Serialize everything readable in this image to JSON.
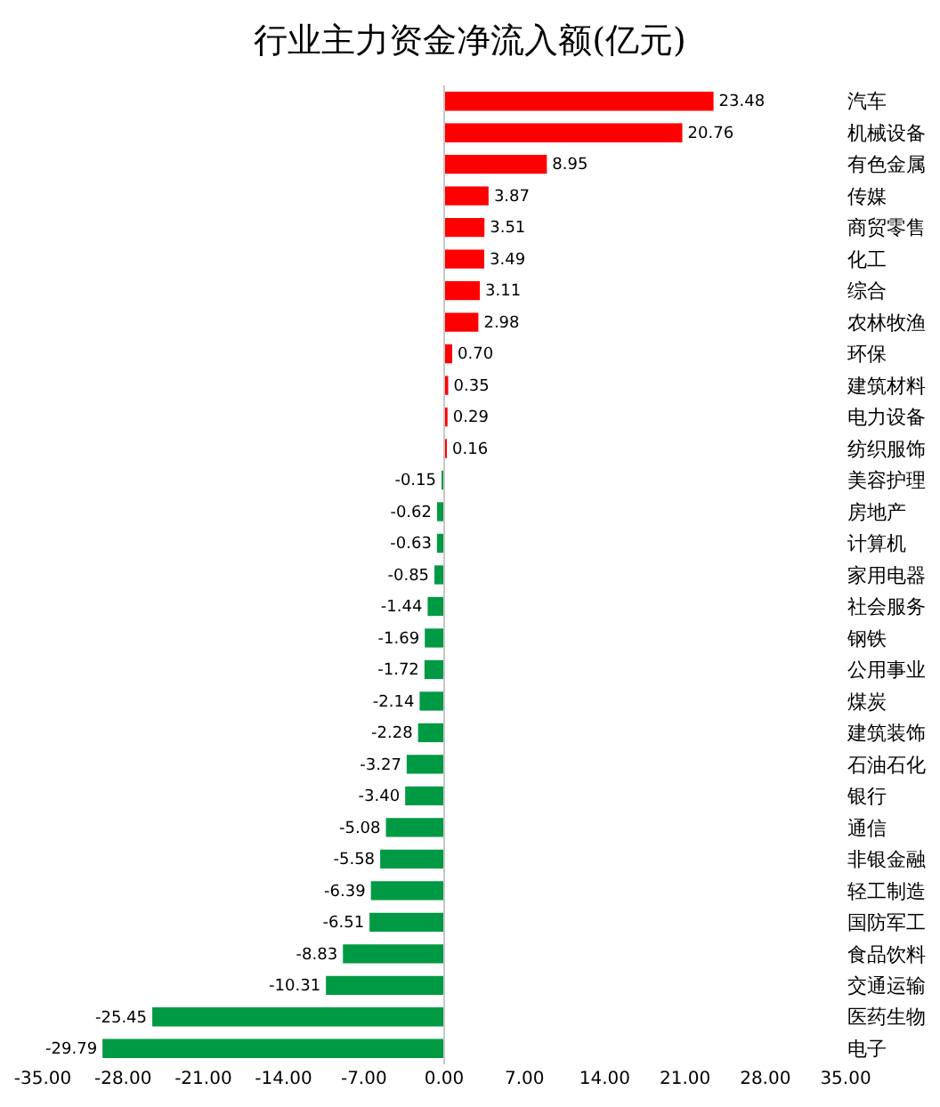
{
  "chart_data": {
    "type": "bar",
    "orientation": "horizontal",
    "title": "行业主力资金净流入额(亿元)",
    "categories": [
      "汽车",
      "机械设备",
      "有色金属",
      "传媒",
      "商贸零售",
      "化工",
      "综合",
      "农林牧渔",
      "环保",
      "建筑材料",
      "电力设备",
      "纺织服饰",
      "美容护理",
      "房地产",
      "计算机",
      "家用电器",
      "社会服务",
      "钢铁",
      "公用事业",
      "煤炭",
      "建筑装饰",
      "石油石化",
      "银行",
      "通信",
      "非银金融",
      "轻工制造",
      "国防军工",
      "食品饮料",
      "交通运输",
      "医药生物",
      "电子"
    ],
    "values": [
      23.48,
      20.76,
      8.95,
      3.87,
      3.51,
      3.49,
      3.11,
      2.98,
      0.7,
      0.35,
      0.29,
      0.16,
      -0.15,
      -0.62,
      -0.63,
      -0.85,
      -1.44,
      -1.69,
      -1.72,
      -2.14,
      -2.28,
      -3.27,
      -3.4,
      -5.08,
      -5.58,
      -6.39,
      -6.51,
      -8.83,
      -10.31,
      -25.45,
      -29.79
    ],
    "value_labels": [
      "23.48",
      "20.76",
      "8.95",
      "3.87",
      "3.51",
      "3.49",
      "3.11",
      "2.98",
      "0.70",
      "0.35",
      "0.29",
      "0.16",
      "-0.15",
      "-0.62",
      "-0.63",
      "-0.85",
      "-1.44",
      "-1.69",
      "-1.72",
      "-2.14",
      "-2.28",
      "-3.27",
      "-3.40",
      "-5.08",
      "-5.58",
      "-6.39",
      "-6.51",
      "-8.83",
      "-10.31",
      "-25.45",
      "-29.79"
    ],
    "colors": [
      "#ff0000",
      "#ff0000",
      "#ff0000",
      "#ff0000",
      "#ff0000",
      "#ff0000",
      "#ff0000",
      "#ff0000",
      "#ff0000",
      "#ff0000",
      "#ff0000",
      "#ff0000",
      "#009a44",
      "#009a44",
      "#009a44",
      "#009a44",
      "#009a44",
      "#009a44",
      "#009a44",
      "#009a44",
      "#009a44",
      "#009a44",
      "#009a44",
      "#009a44",
      "#009a44",
      "#009a44",
      "#009a44",
      "#009a44",
      "#009a44",
      "#009a44",
      "#009a44"
    ],
    "xlim": [
      -35,
      35
    ],
    "xticks": [
      {
        "value": -35,
        "label": "-35.00"
      },
      {
        "value": -28,
        "label": "-28.00"
      },
      {
        "value": -21,
        "label": "-21.00"
      },
      {
        "value": -14,
        "label": "-14.00"
      },
      {
        "value": -7,
        "label": "-7.00"
      },
      {
        "value": 0,
        "label": "0.00"
      },
      {
        "value": 7,
        "label": "7.00"
      },
      {
        "value": 14,
        "label": "14.00"
      },
      {
        "value": 21,
        "label": "21.00"
      },
      {
        "value": 28,
        "label": "28.00"
      },
      {
        "value": 35,
        "label": "35.00"
      }
    ],
    "ref_lines": [
      {
        "axis": "x",
        "value": 0,
        "color": "#c8c8c8"
      }
    ]
  }
}
